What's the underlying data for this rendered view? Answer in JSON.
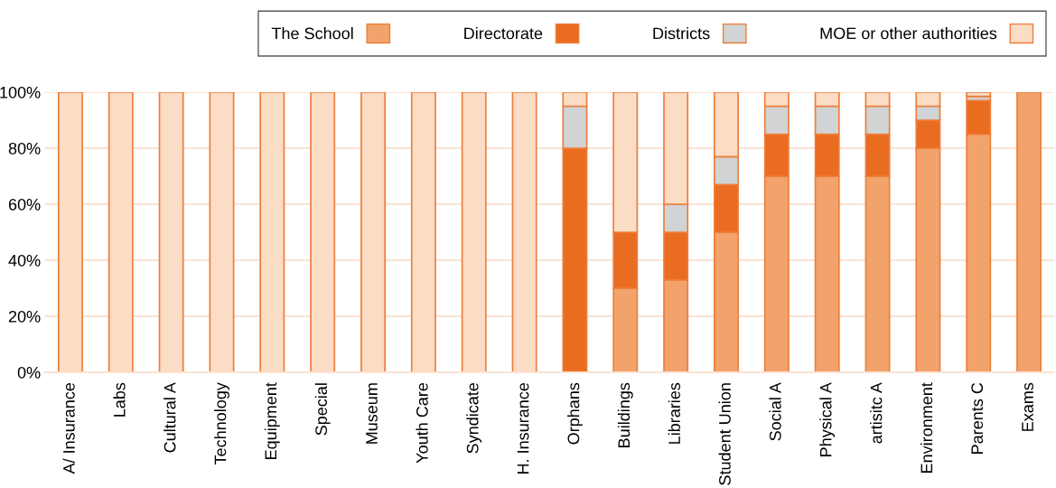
{
  "chart_data": {
    "type": "bar",
    "stacked": true,
    "categories": [
      "A/ Insurance",
      "Labs",
      "Cultural A",
      "Technology",
      "Equipment",
      "Special",
      "Museum",
      "Youth Care",
      "Syndicate",
      "H. Insurance",
      "Orphans",
      "Buildings",
      "Libraries",
      "Student Union",
      "Social A",
      "Physical A",
      "artisitc A",
      "Environment",
      "Parents C",
      "Exams"
    ],
    "series": [
      {
        "name": "The School",
        "color": "#f2a36c",
        "values": [
          0,
          0,
          0,
          0,
          0,
          0,
          0,
          0,
          0,
          0,
          0,
          30,
          33,
          50,
          70,
          70,
          70,
          80,
          85,
          100
        ]
      },
      {
        "name": "Directorate",
        "color": "#ea6c20",
        "values": [
          0,
          0,
          0,
          0,
          0,
          0,
          0,
          0,
          0,
          0,
          80,
          20,
          17,
          17,
          15,
          15,
          15,
          10,
          12,
          0
        ]
      },
      {
        "name": "Districts",
        "color": "#d1d3d4",
        "values": [
          0,
          0,
          0,
          0,
          0,
          0,
          0,
          0,
          0,
          0,
          15,
          0,
          10,
          10,
          10,
          10,
          10,
          5,
          1.5,
          0
        ]
      },
      {
        "name": "MOE or other authorities",
        "color": "#fbdcc4",
        "values": [
          100,
          100,
          100,
          100,
          100,
          100,
          100,
          100,
          100,
          100,
          5,
          50,
          40,
          23,
          5,
          5,
          5,
          5,
          1.5,
          0
        ]
      }
    ],
    "ylim": [
      0,
      100
    ],
    "yticks": [
      {
        "value": 0,
        "label": "0%"
      },
      {
        "value": 20,
        "label": "20%"
      },
      {
        "value": 40,
        "label": "40%"
      },
      {
        "value": 60,
        "label": "60%"
      },
      {
        "value": 80,
        "label": "80%"
      },
      {
        "value": 100,
        "label": "100%"
      }
    ],
    "grid": "y",
    "legend": "top right"
  }
}
